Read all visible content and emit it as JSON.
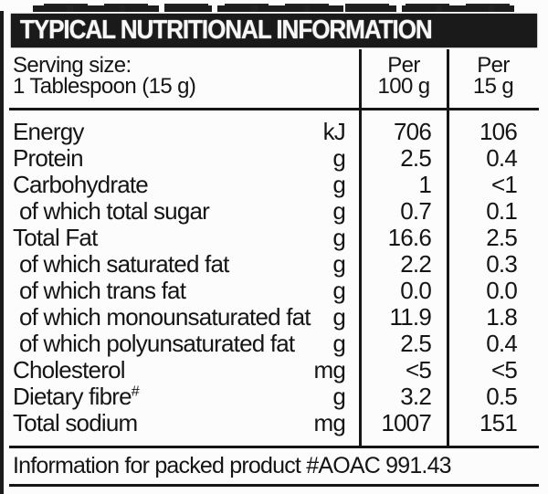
{
  "colors": {
    "paper": "#fcfcfc",
    "ink": "#151515",
    "banner_bg": "#1a1a1a",
    "banner_text": "#f7f7f7"
  },
  "title": {
    "text": "TYPICAL NUTRITIONAL INFORMATION"
  },
  "header": {
    "serving_line1": "Serving size:",
    "serving_line2": "1 Tablespoon (15 g)",
    "col_per100_line1": "Per",
    "col_per100_line2": "100 g",
    "col_per15_line1": "Per",
    "col_per15_line2": "15 g"
  },
  "table": {
    "rows": [
      {
        "label": "Energy",
        "sup": "",
        "indent": false,
        "unit": "kJ",
        "per_100g": "706",
        "per_15g": "106"
      },
      {
        "label": "Protein",
        "sup": "",
        "indent": false,
        "unit": "g",
        "per_100g": "2.5",
        "per_15g": "0.4"
      },
      {
        "label": "Carbohydrate",
        "sup": "",
        "indent": false,
        "unit": "g",
        "per_100g": "1",
        "per_15g": "<1"
      },
      {
        "label": "of which total sugar",
        "sup": "",
        "indent": true,
        "unit": "g",
        "per_100g": "0.7",
        "per_15g": "0.1"
      },
      {
        "label": "Total Fat",
        "sup": "",
        "indent": false,
        "unit": "g",
        "per_100g": "16.6",
        "per_15g": "2.5"
      },
      {
        "label": "of which saturated fat",
        "sup": "",
        "indent": true,
        "unit": "g",
        "per_100g": "2.2",
        "per_15g": "0.3"
      },
      {
        "label": "of which trans fat",
        "sup": "",
        "indent": true,
        "unit": "g",
        "per_100g": "0.0",
        "per_15g": "0.0"
      },
      {
        "label": "of which monounsaturated fat",
        "sup": "",
        "indent": true,
        "unit": "g",
        "per_100g": "11.9",
        "per_15g": "1.8"
      },
      {
        "label": "of which polyunsaturated fat",
        "sup": "",
        "indent": true,
        "unit": "g",
        "per_100g": "2.5",
        "per_15g": "0.4"
      },
      {
        "label": "Cholesterol",
        "sup": "",
        "indent": false,
        "unit": "mg",
        "per_100g": "<5",
        "per_15g": "<5"
      },
      {
        "label": "Dietary fibre",
        "sup": "#",
        "indent": false,
        "unit": "g",
        "per_100g": "3.2",
        "per_15g": "0.5"
      },
      {
        "label": "Total sodium",
        "sup": "",
        "indent": false,
        "unit": "mg",
        "per_100g": "1007",
        "per_15g": "151"
      }
    ]
  },
  "footer": {
    "text": "Information for packed product #AOAC 991.43"
  }
}
